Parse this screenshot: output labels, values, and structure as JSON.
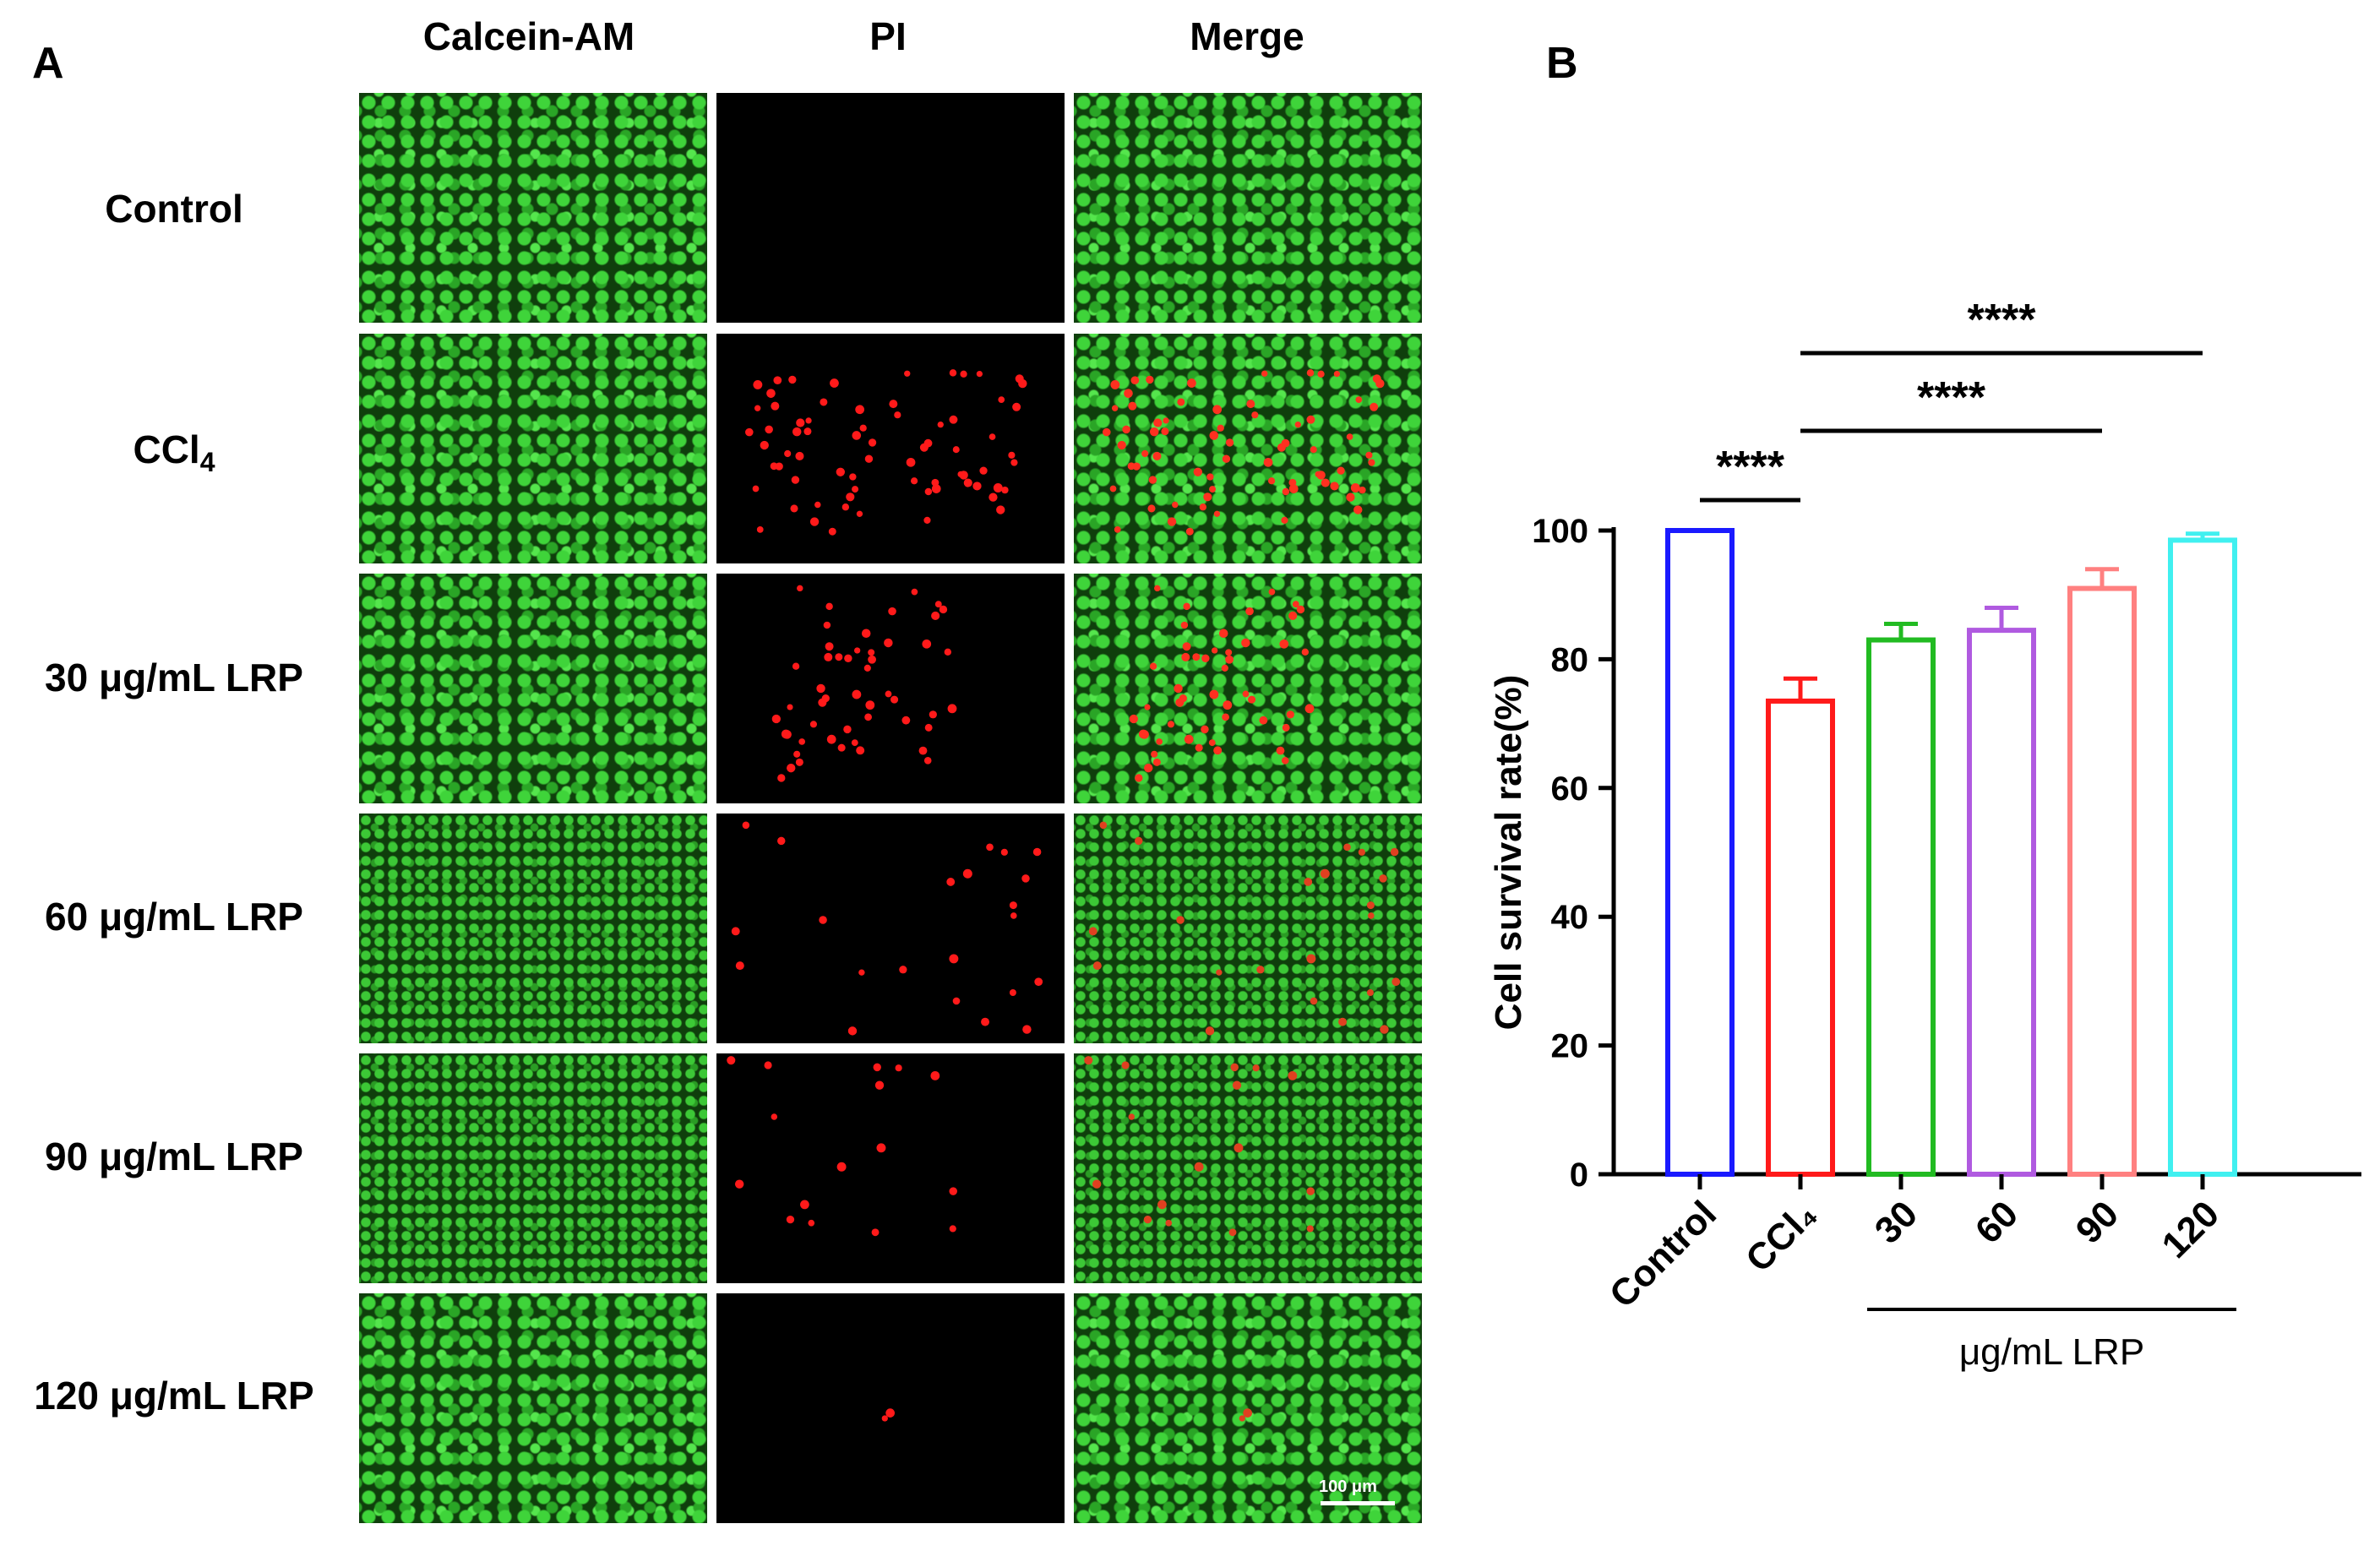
{
  "panel_a": {
    "letter": "A",
    "columns": [
      "Calcein-AM",
      "PI",
      "Merge"
    ],
    "rows": [
      {
        "label": "Control",
        "sub": ""
      },
      {
        "label": "CCl",
        "sub": "4"
      },
      {
        "label": "30 μg/mL LRP",
        "sub": ""
      },
      {
        "label": "60 μg/mL LRP",
        "sub": ""
      },
      {
        "label": "90 μg/mL LRP",
        "sub": ""
      },
      {
        "label": "120 μg/mL LRP",
        "sub": ""
      }
    ],
    "scale_bar": "100 μm",
    "colors": {
      "live": "#3fd43a",
      "dead": "#ff1a1a"
    }
  },
  "panel_b": {
    "letter": "B",
    "group_label": "μg/mL LRP"
  },
  "chart_data": {
    "type": "bar",
    "categories": [
      "Control",
      "CCl₄",
      "30",
      "60",
      "90",
      "120"
    ],
    "values": [
      100,
      73.5,
      83,
      84.5,
      91,
      98.5
    ],
    "errors": [
      0,
      3.5,
      2.5,
      3.5,
      3,
      1
    ],
    "colors": [
      "#1a1aff",
      "#ff1a1a",
      "#22bb22",
      "#b05ae0",
      "#ff8080",
      "#40f0f0"
    ],
    "ylabel": "Cell survival rate(%)",
    "ylim": [
      0,
      100
    ],
    "yticks": [
      0,
      20,
      40,
      60,
      80,
      100
    ],
    "significance": [
      {
        "from": 0,
        "to": 1,
        "label": "****"
      },
      {
        "from": 1,
        "to": 4,
        "label": "****"
      },
      {
        "from": 1,
        "to": 5,
        "label": "****"
      }
    ],
    "grid": false,
    "legend": "none"
  }
}
